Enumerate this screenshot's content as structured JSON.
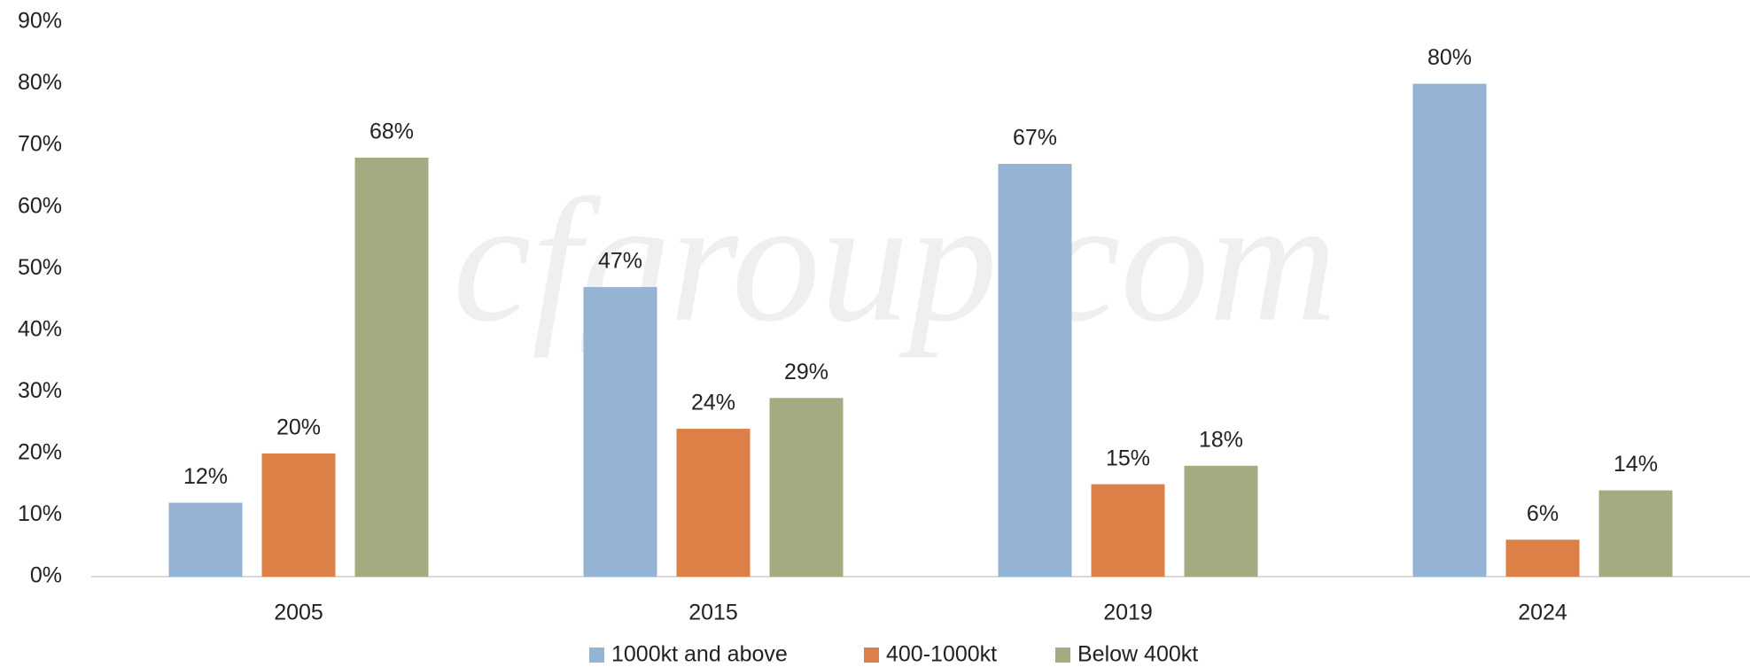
{
  "chart_data": {
    "type": "bar",
    "watermark": "cfgroup.com",
    "categories": [
      "2005",
      "2015",
      "2019",
      "2024"
    ],
    "series": [
      {
        "name": "1000kt and above",
        "color": "#95b3d3",
        "values": [
          12,
          47,
          67,
          80
        ],
        "value_labels": [
          "12%",
          "47%",
          "67%",
          "80%"
        ]
      },
      {
        "name": "400-1000kt",
        "color": "#dd8047",
        "values": [
          20,
          24,
          15,
          6
        ],
        "value_labels": [
          "20%",
          "24%",
          "15%",
          "6%"
        ]
      },
      {
        "name": "Below 400kt",
        "color": "#a5ab80",
        "values": [
          68,
          29,
          18,
          14
        ],
        "value_labels": [
          "68%",
          "29%",
          "18%",
          "14%"
        ]
      }
    ],
    "ylim": [
      0,
      90
    ],
    "yticks": [
      {
        "value": 0,
        "label": "0%"
      },
      {
        "value": 10,
        "label": "10%"
      },
      {
        "value": 20,
        "label": "20%"
      },
      {
        "value": 30,
        "label": "30%"
      },
      {
        "value": 40,
        "label": "40%"
      },
      {
        "value": 50,
        "label": "50%"
      },
      {
        "value": 60,
        "label": "60%"
      },
      {
        "value": 70,
        "label": "70%"
      },
      {
        "value": 80,
        "label": "80%"
      },
      {
        "value": 90,
        "label": "90%"
      }
    ],
    "grid": false,
    "legend": "bottom"
  }
}
